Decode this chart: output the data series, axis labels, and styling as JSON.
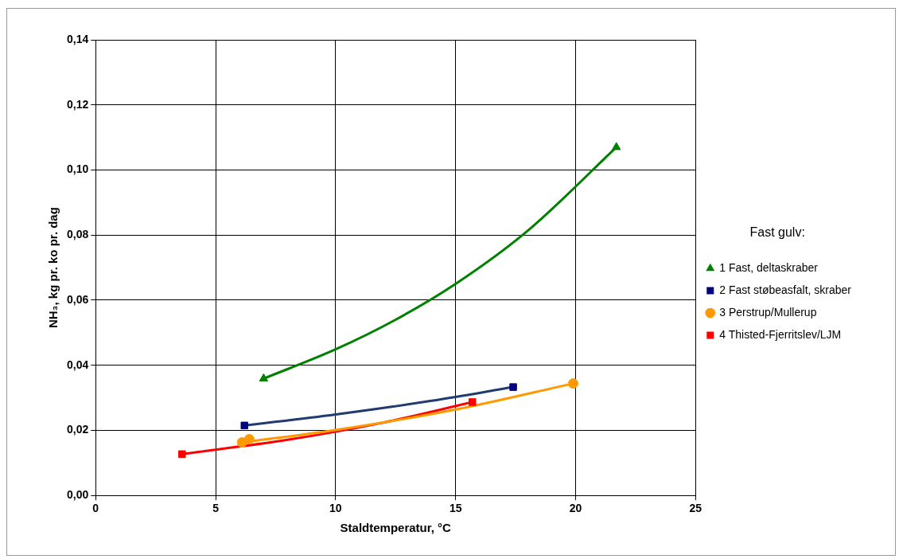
{
  "chart_data": {
    "type": "scatter",
    "xlabel": "Staldtemperatur, °C",
    "ylabel": "NH₃, kg pr. ko pr. dag",
    "legend_title": "Fast gulv:",
    "xlim": [
      0,
      25
    ],
    "xticks": [
      0,
      5,
      10,
      15,
      20,
      25
    ],
    "ylim": [
      0,
      0.14
    ],
    "yticks": [
      {
        "value": 0,
        "label": "0,00"
      },
      {
        "value": 0.02,
        "label": "0,02"
      },
      {
        "value": 0.04,
        "label": "0,04"
      },
      {
        "value": 0.06,
        "label": "0,06"
      },
      {
        "value": 0.08,
        "label": "0,08"
      },
      {
        "value": 0.1,
        "label": "0,10"
      },
      {
        "value": 0.12,
        "label": "0,12"
      },
      {
        "value": 0.14,
        "label": "0,14"
      }
    ],
    "grid": true,
    "legend": "right",
    "series": [
      {
        "name": "1 Fast, deltaskraber",
        "marker": "triangle",
        "color": "#008000",
        "x": [
          7.0,
          21.7
        ],
        "values": [
          0.0359,
          0.107
        ]
      },
      {
        "name": "2 Fast støbeasfalt, skraber",
        "marker": "square",
        "color": "#000080",
        "x": [
          6.2,
          17.4
        ],
        "values": [
          0.0215,
          0.0333
        ]
      },
      {
        "name": "3 Perstrup/Mullerup",
        "marker": "circle",
        "color": "#ff9900",
        "x": [
          6.1,
          6.4,
          19.9
        ],
        "values": [
          0.0163,
          0.0173,
          0.0344
        ]
      },
      {
        "name": "4 Thisted-Fjerritslev/LJM",
        "marker": "square",
        "color": "#ff0000",
        "x": [
          3.6,
          15.7
        ],
        "values": [
          0.0127,
          0.0287
        ]
      },
      {
        "type": "line",
        "color": "#008000",
        "x": [
          7.0,
          10,
          12.5,
          15,
          18,
          21.7
        ],
        "values": [
          0.0359,
          0.0449,
          0.054,
          0.065,
          0.0813,
          0.107
        ]
      },
      {
        "type": "line",
        "color": "#1f3b6f",
        "x": [
          6.2,
          10,
          14,
          17.4
        ],
        "values": [
          0.0215,
          0.0249,
          0.0291,
          0.0333
        ]
      },
      {
        "type": "line",
        "color": "#ff9900",
        "x": [
          6.1,
          10,
          15,
          19.9
        ],
        "values": [
          0.0163,
          0.0201,
          0.0264,
          0.0344
        ]
      },
      {
        "type": "line",
        "color": "#ff0000",
        "x": [
          3.6,
          8,
          12,
          15.7
        ],
        "values": [
          0.0127,
          0.0171,
          0.0224,
          0.0287
        ]
      }
    ]
  }
}
